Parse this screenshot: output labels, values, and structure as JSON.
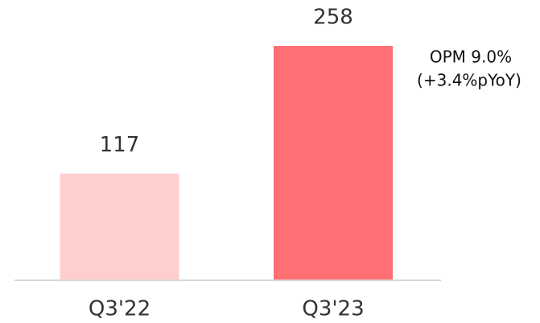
{
  "chart_data": {
    "type": "bar",
    "categories": [
      "Q3'22",
      "Q3'23"
    ],
    "values": [
      117,
      258
    ],
    "colors": [
      "#ffcfd0",
      "#ff6f73"
    ],
    "annotations": [
      "OPM 9.0%",
      "(+3.4%pYoY)"
    ]
  }
}
